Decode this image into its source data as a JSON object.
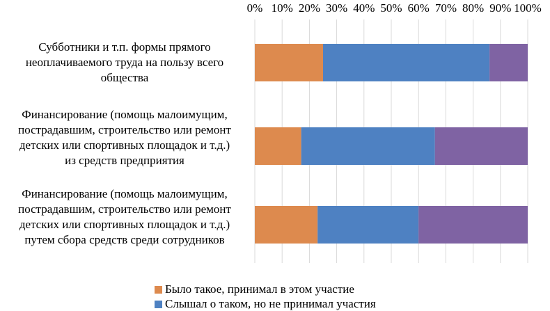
{
  "chart_data": {
    "type": "bar",
    "orientation": "horizontal",
    "stacked": "percent",
    "categories": [
      "Субботники и т.п. формы прямого неоплачиваемого труда на пользу всего общества",
      "Финансирование (помощь малоимущим, пострадавшим, строительство или ремонт детских или спортивных площадок и т.д.) из средств предприятия",
      "Финансирование (помощь малоимущим, пострадавшим, строительство или ремонт детских или спортивных площадок и т.д.) путем сбора средств среди сотрудников"
    ],
    "category_lines": [
      [
        "Субботники и т.п. формы прямого",
        "неоплачиваемого труда на пользу всего",
        "общества"
      ],
      [
        "Финансирование (помощь малоимущим,",
        "пострадавшим, строительство или ремонт",
        "детских или спортивных площадок и т.д.)",
        "из средств предприятия"
      ],
      [
        "Финансирование (помощь малоимущим,",
        "пострадавшим, строительство или ремонт",
        "детских или спортивных площадок и т.д.)",
        "путем сбора средств среди сотрудников"
      ]
    ],
    "series": [
      {
        "name": "Было такое, принимал в этом участие",
        "color": "#dd8a4e",
        "values": [
          25,
          17,
          23
        ]
      },
      {
        "name": "Слышал о таком, но не принимал участия",
        "color": "#4e81c2",
        "values": [
          61,
          49,
          37
        ]
      },
      {
        "name": "",
        "color": "#7f63a3",
        "values": [
          14,
          34,
          40
        ]
      }
    ],
    "x_ticks": [
      "0%",
      "10%",
      "20%",
      "30%",
      "40%",
      "50%",
      "60%",
      "70%",
      "80%",
      "90%",
      "100%"
    ],
    "xlim": [
      0,
      100
    ],
    "x_axis_position": "top",
    "grid": true,
    "legend_position": "bottom"
  }
}
